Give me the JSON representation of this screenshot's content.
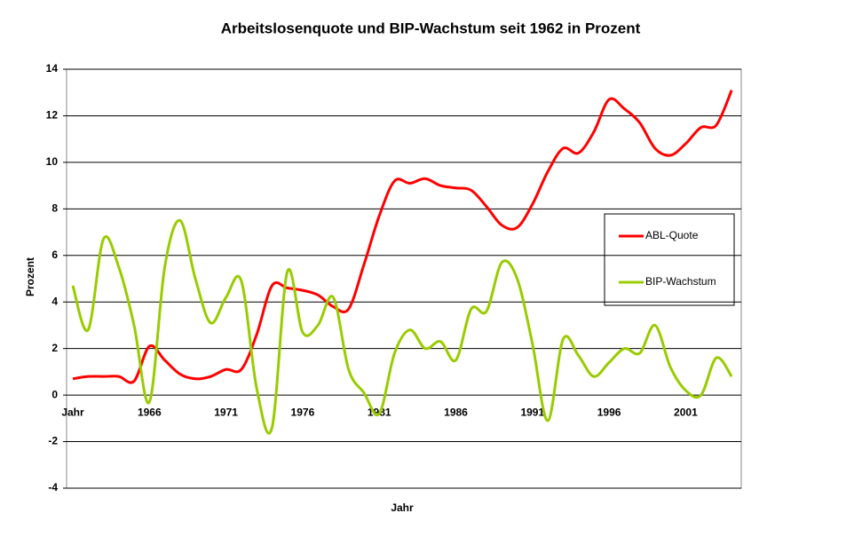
{
  "chart_data": {
    "type": "line",
    "title": "Arbeitslosenquote und BIP-Wachstum seit 1962 in Prozent",
    "x_label": "Jahr",
    "y_label": "Prozent",
    "categories": [
      "Jahr",
      null,
      null,
      null,
      null,
      "1966",
      null,
      null,
      null,
      null,
      "1971",
      null,
      null,
      null,
      null,
      "1976",
      null,
      null,
      null,
      null,
      "1981",
      null,
      null,
      null,
      null,
      "1986",
      null,
      null,
      null,
      null,
      "1991",
      null,
      null,
      null,
      null,
      "1996",
      null,
      null,
      null,
      null,
      "2001",
      null,
      null,
      null
    ],
    "series": [
      {
        "name": "ABL-Quote",
        "color": "#ff0000",
        "values": [
          0.7,
          0.8,
          0.8,
          0.8,
          0.6,
          2.1,
          1.5,
          0.9,
          0.7,
          0.8,
          1.1,
          1.1,
          2.6,
          4.7,
          4.6,
          4.5,
          4.3,
          3.8,
          3.7,
          5.6,
          7.7,
          9.2,
          9.1,
          9.3,
          9.0,
          8.9,
          8.8,
          8.1,
          7.3,
          7.2,
          8.2,
          9.6,
          10.6,
          10.4,
          11.3,
          12.7,
          12.3,
          11.7,
          10.6,
          10.3,
          10.8,
          11.5,
          11.6,
          13.1
        ]
      },
      {
        "name": "BIP-Wachstum",
        "color": "#99cc00",
        "values": [
          4.7,
          2.8,
          6.7,
          5.5,
          3.0,
          -0.3,
          5.5,
          7.5,
          5.0,
          3.1,
          4.2,
          4.9,
          0.3,
          -1.4,
          5.3,
          2.7,
          3.0,
          4.2,
          1.1,
          0.1,
          -0.8,
          1.8,
          2.8,
          2.0,
          2.3,
          1.5,
          3.7,
          3.6,
          5.7,
          5.0,
          2.2,
          -1.1,
          2.4,
          1.7,
          0.8,
          1.4,
          2.0,
          1.8,
          3.0,
          1.2,
          0.2,
          0.0,
          1.6,
          0.8
        ]
      }
    ],
    "ylim": [
      -4,
      14
    ],
    "yticks": [
      -4,
      -2,
      0,
      2,
      4,
      6,
      8,
      10,
      12,
      14
    ],
    "grid": true,
    "legend": "right"
  }
}
